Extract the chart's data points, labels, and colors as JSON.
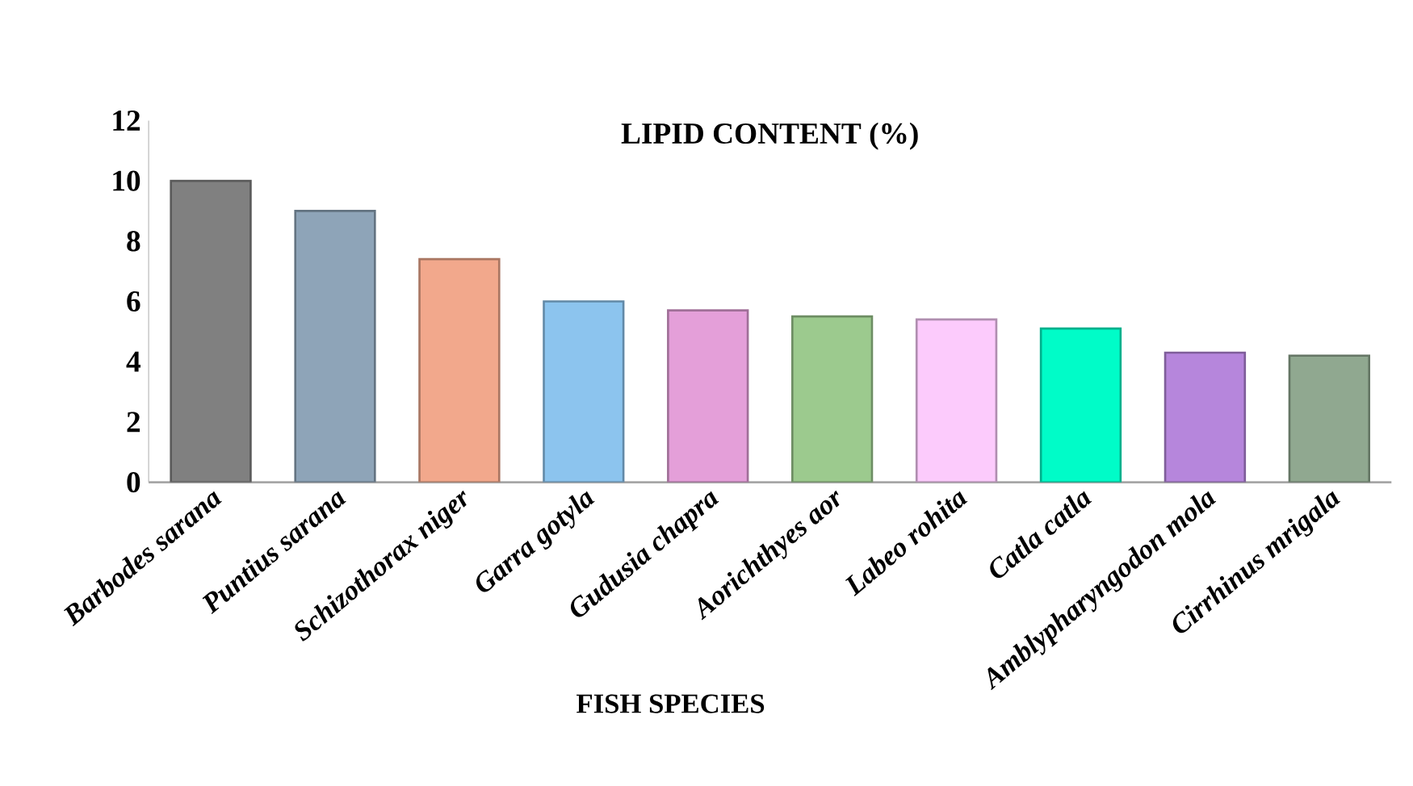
{
  "chart_data": {
    "type": "bar",
    "title": "LIPID CONTENT (%)",
    "xlabel": "FISH SPECIES",
    "categories": [
      "*Barbodes sarana*",
      "*Puntius sarana*",
      "*Schizothorax niger*",
      "*Garra gotyla*",
      "*Gudusia chapra*",
      "*Aorichthyes aor*",
      "*Labeo rohita*",
      "*Catla catla*",
      "*Amblypharyngodon mola*",
      "*Cirrhinus mrigala*"
    ],
    "values": [
      10.0,
      9.0,
      7.4,
      6.0,
      5.7,
      5.5,
      5.4,
      5.1,
      4.3,
      4.2
    ],
    "colors": [
      "#808080",
      "#8ea4b8",
      "#f2a88c",
      "#8cc4ee",
      "#e49fd9",
      "#9cca8e",
      "#fccbfc",
      "#00fcc8",
      "#b686dc",
      "#90a890"
    ],
    "ylim": [
      0,
      12
    ],
    "yticks": [
      0,
      2,
      4,
      6,
      8,
      10,
      12
    ],
    "grid": false
  }
}
